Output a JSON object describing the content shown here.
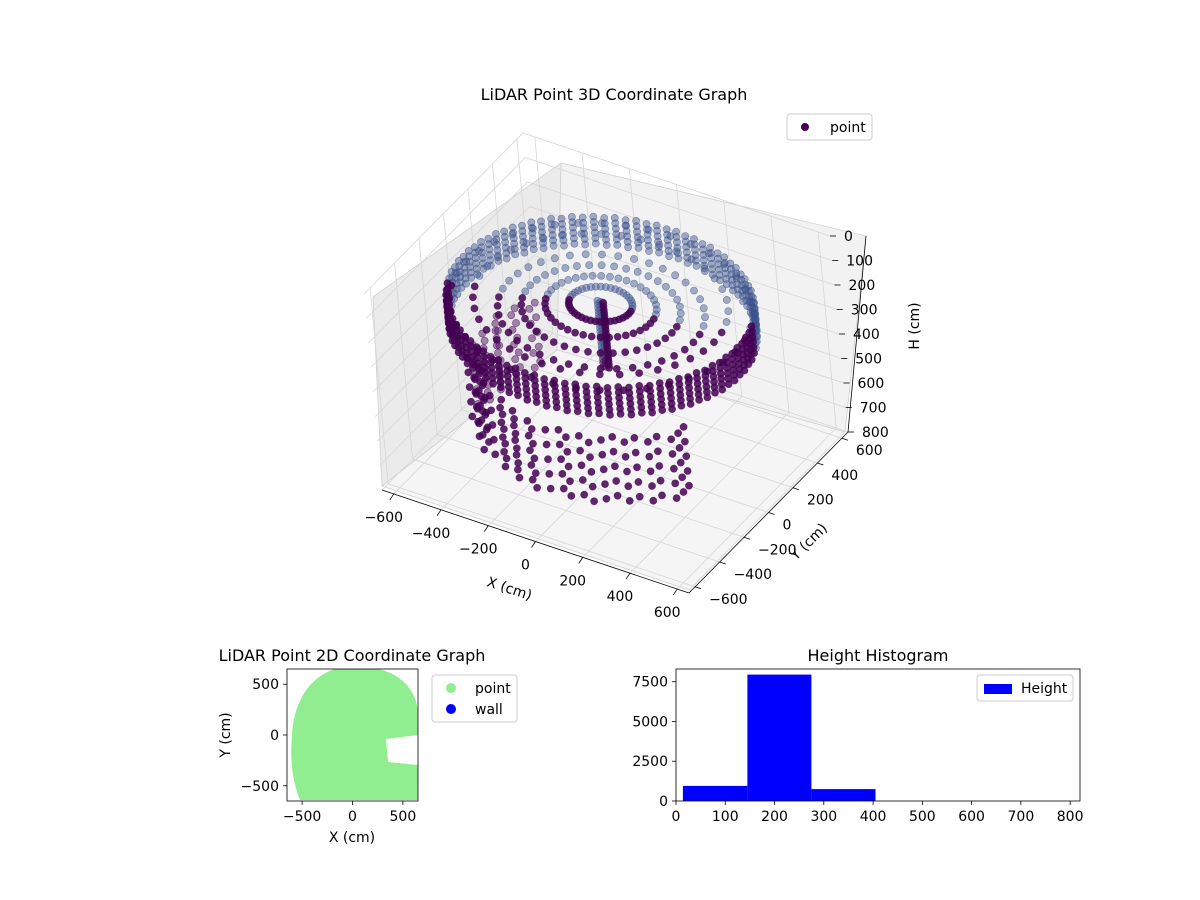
{
  "chart_data": [
    {
      "type": "scatter",
      "title": "LiDAR Point 3D Coordinate Graph",
      "xlabel": "X (cm)",
      "ylabel": "Y (cm)",
      "zlabel": "H (cm)",
      "xlim": [
        -650,
        650
      ],
      "ylim": [
        -650,
        650
      ],
      "zlim": [
        0,
        800
      ],
      "z_inverted": true,
      "x_ticks": [
        -600,
        -400,
        -200,
        0,
        200,
        400,
        600
      ],
      "y_ticks": [
        -600,
        -400,
        -200,
        0,
        200,
        400,
        600
      ],
      "z_ticks": [
        0,
        100,
        200,
        300,
        400,
        500,
        600,
        700,
        800
      ],
      "legend": {
        "position": "top-right",
        "entries": [
          "point"
        ]
      },
      "colors": {
        "point": "#440154",
        "mid": "#3b528b",
        "light": "#21918c"
      },
      "series": [
        {
          "name": "point",
          "description_shape": "cylindrical wall of points around origin, radius about 580 cm, heights 150-270 cm, with lower ring points 400-680 cm on the front side",
          "radius": 580,
          "h_range": [
            150,
            270
          ],
          "lower_ring_h_range": [
            420,
            680
          ],
          "center_column": {
            "x": 0,
            "y": 0,
            "h_range": [
              150,
              420
            ]
          }
        }
      ]
    },
    {
      "type": "scatter",
      "title": "LiDAR Point 2D Coordinate Graph",
      "xlabel": "X (cm)",
      "ylabel": "Y (cm)",
      "xlim": [
        -650,
        650
      ],
      "ylim": [
        -650,
        650
      ],
      "x_ticks": [
        -500,
        0,
        500
      ],
      "y_ticks": [
        -500,
        0,
        500
      ],
      "legend": {
        "position": "outside-right",
        "entries": [
          "point",
          "wall"
        ]
      },
      "colors": {
        "point": "#90ee90",
        "wall": "#0000ff"
      },
      "series": [
        {
          "name": "point",
          "shape": "filled disk radius about 600 cm with notch on right side near y=0"
        },
        {
          "name": "wall",
          "values": []
        }
      ]
    },
    {
      "type": "bar",
      "title": "Height Histogram",
      "xlim": [
        0,
        820
      ],
      "ylim": [
        0,
        8300
      ],
      "x_ticks": [
        0,
        100,
        200,
        300,
        400,
        500,
        600,
        700,
        800
      ],
      "y_ticks": [
        0,
        2500,
        5000,
        7500
      ],
      "legend": {
        "position": "top-right",
        "entries": [
          "Height"
        ]
      },
      "colors": {
        "Height": "#0000ff"
      },
      "series": [
        {
          "name": "Height",
          "bins": [
            {
              "from": 14,
              "to": 145,
              "count": 950
            },
            {
              "from": 145,
              "to": 275,
              "count": 7950
            },
            {
              "from": 275,
              "to": 405,
              "count": 750
            },
            {
              "from": 405,
              "to": 535,
              "count": 0
            },
            {
              "from": 535,
              "to": 665,
              "count": 0
            },
            {
              "from": 665,
              "to": 795,
              "count": 0
            }
          ]
        }
      ]
    }
  ]
}
